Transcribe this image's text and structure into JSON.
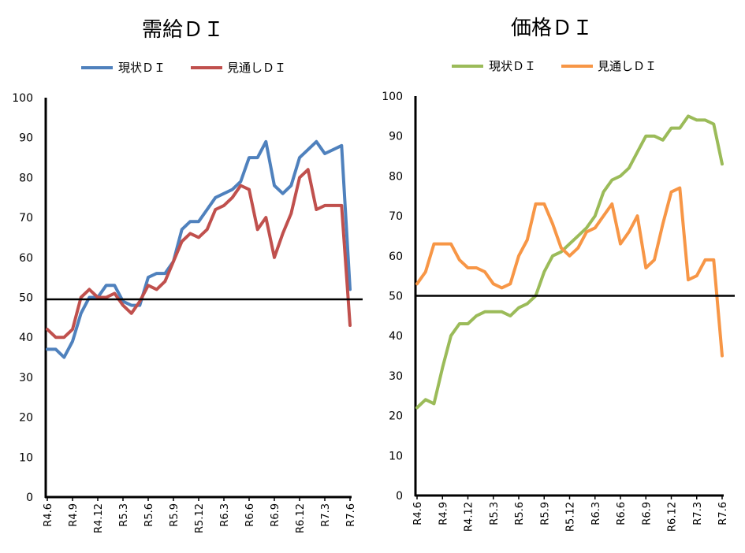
{
  "chart_data": [
    {
      "type": "line",
      "title": "需給ＤＩ",
      "xlabel": "",
      "ylabel": "",
      "ylim": [
        0,
        100
      ],
      "yticks": [
        0,
        10,
        20,
        30,
        40,
        50,
        60,
        70,
        80,
        90,
        100
      ],
      "x": [
        "R4.6",
        "R4.7",
        "R4.8",
        "R4.9",
        "R4.10",
        "R4.11",
        "R4.12",
        "R5.1",
        "R5.2",
        "R5.3",
        "R5.4",
        "R5.5",
        "R5.6",
        "R5.7",
        "R5.8",
        "R5.9",
        "R5.10",
        "R5.11",
        "R5.12",
        "R6.1",
        "R6.2",
        "R6.3",
        "R6.4",
        "R6.5",
        "R6.6",
        "R6.7",
        "R6.8",
        "R6.9",
        "R6.10",
        "R6.11",
        "R6.12",
        "R7.1",
        "R7.2",
        "R7.3",
        "R7.4",
        "R7.5",
        "R7.6"
      ],
      "tick_labels": [
        "R4.6",
        "R4.9",
        "R4.12",
        "R5.3",
        "R5.6",
        "R5.9",
        "R5.12",
        "R6.3",
        "R6.6",
        "R6.9",
        "R6.12",
        "R7.3",
        "R7.6"
      ],
      "reference_line": 49.5,
      "grid": false,
      "legend_position": "top",
      "series": [
        {
          "name": "現状ＤＩ",
          "color": "#4f81bd",
          "values": [
            37,
            37,
            35,
            39,
            46,
            50,
            50,
            53,
            53,
            49,
            48,
            48,
            55,
            56,
            56,
            59,
            67,
            69,
            69,
            72,
            75,
            76,
            77,
            79,
            85,
            85,
            89,
            78,
            76,
            78,
            85,
            87,
            89,
            86,
            87,
            88,
            52
          ]
        },
        {
          "name": "見通しＤＩ",
          "color": "#c0504d",
          "values": [
            42,
            40,
            40,
            42,
            50,
            52,
            50,
            50,
            51,
            48,
            46,
            49,
            53,
            52,
            54,
            59,
            64,
            66,
            65,
            67,
            72,
            73,
            75,
            78,
            77,
            67,
            70,
            60,
            66,
            71,
            80,
            82,
            72,
            73,
            73,
            73,
            43
          ]
        }
      ]
    },
    {
      "type": "line",
      "title": "価格ＤＩ",
      "xlabel": "",
      "ylabel": "",
      "ylim": [
        0,
        100
      ],
      "yticks": [
        0,
        10,
        20,
        30,
        40,
        50,
        60,
        70,
        80,
        90,
        100
      ],
      "x": [
        "R4.6",
        "R4.7",
        "R4.8",
        "R4.9",
        "R4.10",
        "R4.11",
        "R4.12",
        "R5.1",
        "R5.2",
        "R5.3",
        "R5.4",
        "R5.5",
        "R5.6",
        "R5.7",
        "R5.8",
        "R5.9",
        "R5.10",
        "R5.11",
        "R5.12",
        "R6.1",
        "R6.2",
        "R6.3",
        "R6.4",
        "R6.5",
        "R6.6",
        "R6.7",
        "R6.8",
        "R6.9",
        "R6.10",
        "R6.11",
        "R6.12",
        "R7.1",
        "R7.2",
        "R7.3",
        "R7.4",
        "R7.5",
        "R7.6"
      ],
      "tick_labels": [
        "R4.6",
        "R4.9",
        "R4.12",
        "R5.3",
        "R5.6",
        "R5.9",
        "R5.12",
        "R6.3",
        "R6.6",
        "R6.9",
        "R6.12",
        "R7.3",
        "R7.6"
      ],
      "reference_line": 50,
      "grid": false,
      "legend_position": "top",
      "series": [
        {
          "name": "現状ＤＩ",
          "color": "#9bbb59",
          "values": [
            22,
            24,
            23,
            32,
            40,
            43,
            43,
            45,
            46,
            46,
            46,
            45,
            47,
            48,
            50,
            56,
            60,
            61,
            63,
            65,
            67,
            70,
            76,
            79,
            80,
            82,
            86,
            90,
            90,
            89,
            92,
            92,
            95,
            94,
            94,
            93,
            83
          ]
        },
        {
          "name": "見通しＤＩ",
          "color": "#f79646",
          "values": [
            53,
            56,
            63,
            63,
            63,
            59,
            57,
            57,
            56,
            53,
            52,
            53,
            60,
            64,
            73,
            73,
            68,
            62,
            60,
            62,
            66,
            67,
            70,
            73,
            63,
            66,
            70,
            57,
            59,
            68,
            76,
            77,
            54,
            55,
            59,
            59,
            35
          ]
        }
      ]
    }
  ]
}
